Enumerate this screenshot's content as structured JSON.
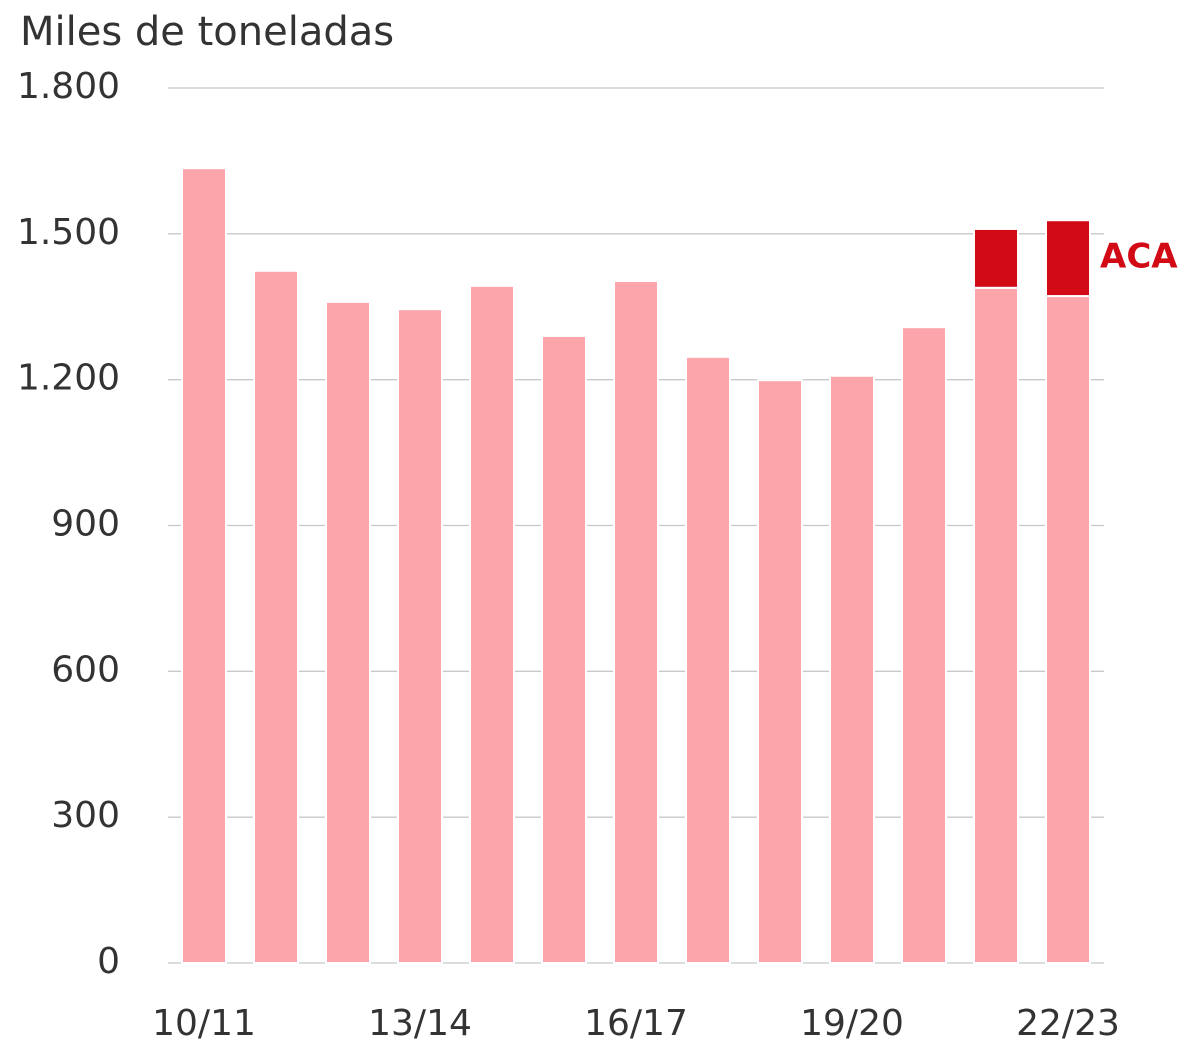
{
  "chart_data": {
    "type": "stacked_bar",
    "title": "Miles de toneladas",
    "categories": [
      "10/11",
      null,
      null,
      "13/14",
      null,
      null,
      "16/17",
      null,
      null,
      "19/20",
      null,
      null,
      "22/23"
    ],
    "series": [
      {
        "color": "#fca6ac",
        "values": [
          1635,
          1424,
          1360,
          1345,
          1393,
          1290,
          1403,
          1247,
          1199,
          1208,
          1308,
          1389,
          1372
        ]
      },
      {
        "name": "ACA",
        "color": "#d10a16",
        "values": [
          null,
          null,
          null,
          null,
          null,
          null,
          null,
          null,
          null,
          null,
          null,
          121,
          156
        ]
      }
    ],
    "ylim": [
      0,
      1800
    ],
    "yticks": [
      0,
      300,
      600,
      900,
      {
        "value": 1200,
        "label": "1.200"
      },
      {
        "value": 1500,
        "label": "1.500"
      },
      {
        "value": 1800,
        "label": "1.800"
      }
    ],
    "grid": true
  }
}
